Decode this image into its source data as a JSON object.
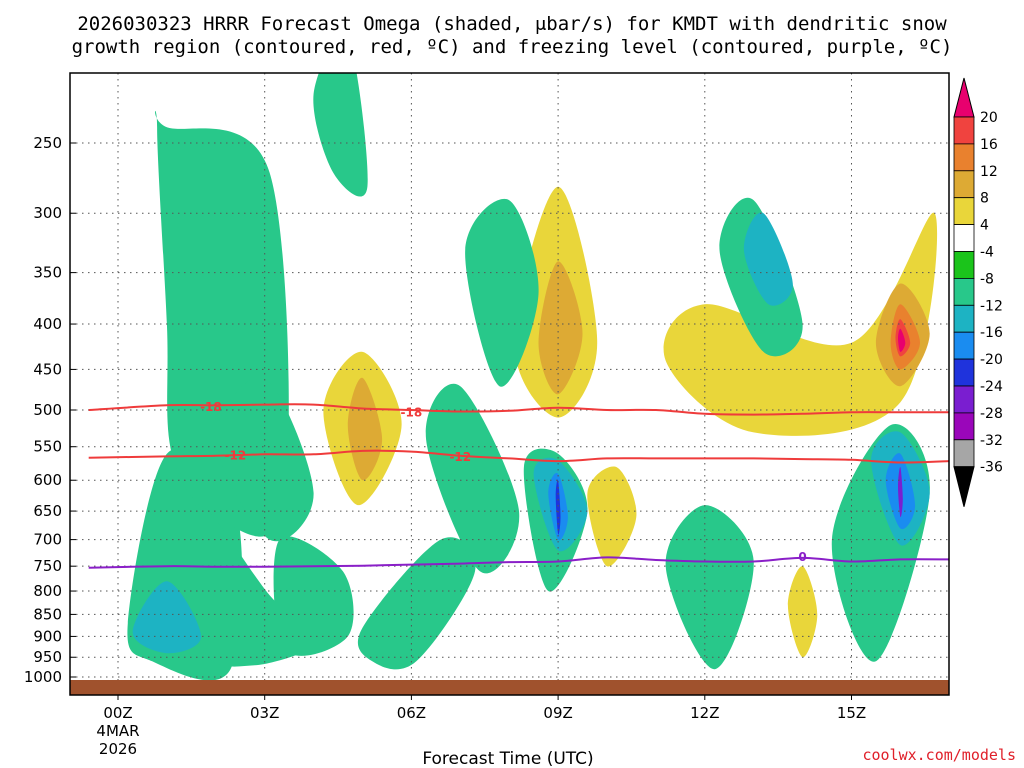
{
  "title": {
    "line1": "2026030323 HRRR Forecast Omega (shaded, μbar/s) for KMDT with dendritic snow",
    "line2": "growth region (contoured, red, ºC) and freezing level (contoured, purple, ºC)"
  },
  "xlabel": "Forecast Time (UTC)",
  "date_label": {
    "day": "4MAR",
    "year": "2026"
  },
  "credit": "coolwx.com/models",
  "chart_data": {
    "type": "heatmap",
    "title": "2026030323 HRRR Forecast Omega (shaded, μbar/s) for KMDT with dendritic snow growth region (contoured, red, ºC) and freezing level (contoured, purple, ºC)",
    "xlabel": "Forecast Time (UTC)",
    "ylabel": "",
    "x_ticks": [
      {
        "hour": 0,
        "label": "00Z"
      },
      {
        "hour": 3,
        "label": "03Z"
      },
      {
        "hour": 6,
        "label": "06Z"
      },
      {
        "hour": 9,
        "label": "09Z"
      },
      {
        "hour": 12,
        "label": "12Z"
      },
      {
        "hour": 15,
        "label": "15Z"
      }
    ],
    "xlim": [
      -0.6,
      17
    ],
    "y_ticks": [
      250,
      300,
      350,
      400,
      450,
      500,
      550,
      600,
      650,
      700,
      750,
      800,
      850,
      900,
      950,
      1000
    ],
    "ylim": [
      1020,
      200
    ],
    "colorbar": {
      "labels": [
        "20",
        "16",
        "12",
        "8",
        "4",
        "-4",
        "-8",
        "-12",
        "-16",
        "-20",
        "-24",
        "-28",
        "-32",
        "-36"
      ],
      "colors": [
        "#e8006e",
        "#f0433f",
        "#e9812e",
        "#ddaa34",
        "#e9d63a",
        "#ffffff",
        "#1bc41b",
        "#28c88a",
        "#1db3c3",
        "#1a8cf0",
        "#1f33dc",
        "#7a1ed0",
        "#9a06ba",
        "#a6a6a6",
        "#000000"
      ]
    },
    "omega_regions": [
      {
        "level": -8,
        "x": [
          0.2,
          1.0,
          2.4,
          2.3,
          0.7
        ],
        "y": [
          870,
          560,
          640,
          980,
          960
        ]
      },
      {
        "level": -8,
        "x": [
          0.8,
          1.0,
          1.1,
          2.0,
          3.4,
          3.1,
          1.0
        ],
        "y": [
          240,
          400,
          560,
          660,
          640,
          270,
          240
        ]
      },
      {
        "level": -8,
        "x": [
          1.6,
          3.2,
          4.3,
          2.8,
          1.7
        ],
        "y": [
          640,
          820,
          900,
          970,
          920
        ]
      },
      {
        "level": -8,
        "x": [
          2.0,
          3.0,
          4.0,
          3.1
        ],
        "y": [
          540,
          460,
          620,
          700
        ]
      },
      {
        "level": -8,
        "x": [
          4.0,
          4.7,
          5.1,
          4.4
        ],
        "y": [
          220,
          190,
          280,
          270
        ]
      },
      {
        "level": -8,
        "x": [
          3.3,
          4.6,
          4.7,
          3.4
        ],
        "y": [
          700,
          760,
          900,
          930
        ]
      },
      {
        "level": -8,
        "x": [
          5.0,
          6.6,
          7.3,
          6.1,
          5.2
        ],
        "y": [
          880,
          700,
          760,
          960,
          960
        ]
      },
      {
        "level": -8,
        "x": [
          6.3,
          7.0,
          8.2,
          7.4
        ],
        "y": [
          540,
          470,
          650,
          760
        ]
      },
      {
        "level": -8,
        "x": [
          7.1,
          8.0,
          8.6,
          7.8
        ],
        "y": [
          330,
          290,
          370,
          470
        ]
      },
      {
        "level": -8,
        "x": [
          8.3,
          9.0,
          9.6,
          8.8
        ],
        "y": [
          580,
          560,
          650,
          800
        ]
      },
      {
        "level": -8,
        "x": [
          11.2,
          12.0,
          13.0,
          12.2
        ],
        "y": [
          750,
          640,
          740,
          980
        ]
      },
      {
        "level": -8,
        "x": [
          12.3,
          13.0,
          14.0,
          13.2
        ],
        "y": [
          330,
          290,
          400,
          430
        ]
      },
      {
        "level": -8,
        "x": [
          14.6,
          15.8,
          16.6,
          15.5
        ],
        "y": [
          700,
          520,
          620,
          960
        ]
      },
      {
        "level": -12,
        "x": [
          0.3,
          1.0,
          1.7,
          1.0
        ],
        "y": [
          890,
          780,
          900,
          940
        ]
      },
      {
        "level": -12,
        "x": [
          12.8,
          13.2,
          13.8,
          13.3
        ],
        "y": [
          330,
          300,
          360,
          380
        ]
      },
      {
        "level": -12,
        "x": [
          8.5,
          9.0,
          9.6,
          9.0
        ],
        "y": [
          590,
          570,
          650,
          720
        ]
      },
      {
        "level": -12,
        "x": [
          15.4,
          16.0,
          16.6,
          16.0
        ],
        "y": [
          570,
          530,
          620,
          710
        ]
      },
      {
        "level": -16,
        "x": [
          8.8,
          9.0,
          9.2,
          9.0
        ],
        "y": [
          620,
          590,
          660,
          700
        ]
      },
      {
        "level": -16,
        "x": [
          15.7,
          16.0,
          16.3,
          16.0
        ],
        "y": [
          600,
          560,
          640,
          680
        ]
      },
      {
        "level": -20,
        "x": [
          8.95,
          9.0,
          9.05,
          9.0
        ],
        "y": [
          625,
          600,
          660,
          690
        ]
      },
      {
        "level": -24,
        "x": [
          15.95,
          16.0,
          16.05,
          16.0
        ],
        "y": [
          610,
          580,
          630,
          660
        ]
      },
      {
        "level": 4,
        "x": [
          4.2,
          5.0,
          5.8,
          4.9
        ],
        "y": [
          500,
          430,
          520,
          640
        ]
      },
      {
        "level": 4,
        "x": [
          8.1,
          9.0,
          9.8,
          9.0
        ],
        "y": [
          420,
          280,
          420,
          510
        ]
      },
      {
        "level": 4,
        "x": [
          9.6,
          10.2,
          10.6,
          10.0
        ],
        "y": [
          620,
          580,
          660,
          750
        ]
      },
      {
        "level": 4,
        "x": [
          11.2,
          12.0,
          15.0,
          16.7,
          16.0,
          13.0
        ],
        "y": [
          440,
          380,
          420,
          300,
          490,
          530
        ]
      },
      {
        "level": 4,
        "x": [
          13.7,
          14.0,
          14.3,
          14.0
        ],
        "y": [
          830,
          750,
          850,
          950
        ]
      },
      {
        "level": 8,
        "x": [
          4.7,
          5.0,
          5.4,
          5.0
        ],
        "y": [
          520,
          460,
          540,
          600
        ]
      },
      {
        "level": 8,
        "x": [
          8.6,
          9.0,
          9.5,
          9.0
        ],
        "y": [
          420,
          340,
          410,
          480
        ]
      },
      {
        "level": 8,
        "x": [
          15.5,
          16.0,
          16.6,
          16.0
        ],
        "y": [
          420,
          360,
          410,
          470
        ]
      },
      {
        "level": 12,
        "x": [
          15.8,
          16.0,
          16.4,
          16.0
        ],
        "y": [
          420,
          380,
          420,
          450
        ]
      },
      {
        "level": 16,
        "x": [
          15.9,
          16.0,
          16.2,
          16.0
        ],
        "y": [
          415,
          395,
          420,
          435
        ]
      },
      {
        "level": 20,
        "x": [
          15.95,
          16.0,
          16.1,
          16.0
        ],
        "y": [
          415,
          405,
          420,
          430
        ]
      }
    ],
    "contours": [
      {
        "name": "-18",
        "color": "#ef3b3b",
        "x": [
          -0.6,
          1.0,
          2.0,
          3.0,
          4.0,
          5.0,
          6.0,
          7.0,
          8.0,
          9.0,
          10.0,
          11.0,
          12.0,
          13.0,
          14.0,
          15.0,
          16.0,
          17.0
        ],
        "y": [
          500,
          494,
          494,
          493,
          493,
          498,
          500,
          502,
          501,
          497,
          500,
          500,
          505,
          506,
          505,
          503,
          503,
          503
        ],
        "labels": [
          {
            "x": 1.9,
            "y": 496,
            "text": "-18"
          },
          {
            "x": 6.0,
            "y": 503,
            "text": "-18"
          }
        ]
      },
      {
        "name": "-12",
        "color": "#ef3b3b",
        "x": [
          -0.6,
          1.0,
          2.0,
          3.0,
          4.0,
          5.0,
          6.0,
          7.0,
          8.0,
          9.0,
          10.0,
          11.0,
          12.0,
          13.0,
          14.0,
          15.0,
          16.0,
          17.0
        ],
        "y": [
          566,
          564,
          563,
          561,
          561,
          556,
          557,
          563,
          567,
          571,
          567,
          567,
          567,
          567,
          568,
          569,
          573,
          571
        ],
        "labels": [
          {
            "x": 2.4,
            "y": 563,
            "text": "-12"
          },
          {
            "x": 7.0,
            "y": 565,
            "text": "-12"
          }
        ]
      },
      {
        "name": "0",
        "color": "#8a1fc8",
        "x": [
          -0.6,
          1.0,
          2.0,
          3.0,
          4.0,
          5.0,
          6.0,
          7.0,
          8.0,
          9.0,
          10.0,
          11.0,
          12.0,
          13.0,
          14.0,
          15.0,
          16.0,
          17.0
        ],
        "y": [
          753,
          750,
          751,
          751,
          750,
          749,
          747,
          745,
          742,
          741,
          733,
          738,
          741,
          741,
          734,
          741,
          737,
          737
        ],
        "labels": [
          {
            "x": 14.0,
            "y": 732,
            "text": "0"
          }
        ]
      }
    ]
  }
}
